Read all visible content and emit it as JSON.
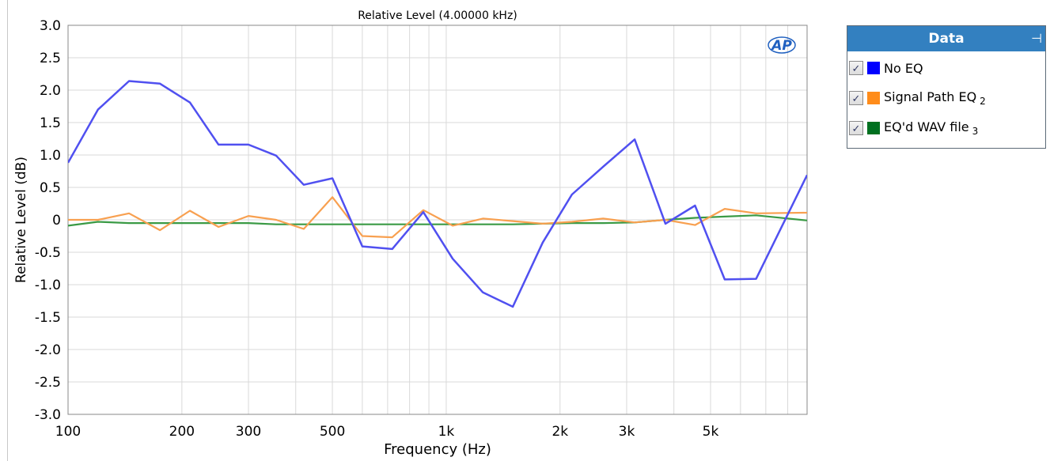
{
  "chart_data": {
    "type": "line",
    "title": "Relative Level (4.00000 kHz)",
    "xlabel": "Frequency (Hz)",
    "ylabel": "Relative Level (dB)",
    "xscale": "log",
    "xlim": [
      100,
      9000
    ],
    "ylim": [
      -3.0,
      3.0
    ],
    "grid": true,
    "x_tick_values": [
      100,
      200,
      300,
      500,
      1000,
      2000,
      3000,
      5000
    ],
    "x_tick_labels": [
      "100",
      "200",
      "300",
      "500",
      "1k",
      "2k",
      "3k",
      "5k"
    ],
    "y_tick_values": [
      3.0,
      2.5,
      2.0,
      1.5,
      1.0,
      0.5,
      0,
      -0.5,
      -1.0,
      -1.5,
      -2.0,
      -2.5,
      -3.0
    ],
    "y_tick_labels": [
      "3.0",
      "2.5",
      "2.0",
      "1.5",
      "1.0",
      "0.5",
      "0",
      "-0.5",
      "-1.0",
      "-1.5",
      "-2.0",
      "-2.5",
      "-3.0"
    ],
    "series": [
      {
        "name": "No EQ",
        "color": "#5050f0",
        "points": [
          [
            100,
            0.88
          ],
          [
            120,
            1.7
          ],
          [
            145,
            2.14
          ],
          [
            175,
            2.1
          ],
          [
            210,
            1.81
          ],
          [
            250,
            1.16
          ],
          [
            300,
            1.16
          ],
          [
            355,
            0.99
          ],
          [
            420,
            0.54
          ],
          [
            500,
            0.64
          ],
          [
            600,
            -0.41
          ],
          [
            720,
            -0.45
          ],
          [
            870,
            0.12
          ],
          [
            1040,
            -0.6
          ],
          [
            1250,
            -1.12
          ],
          [
            1500,
            -1.34
          ],
          [
            1800,
            -0.35
          ],
          [
            2150,
            0.39
          ],
          [
            2600,
            0.82
          ],
          [
            3150,
            1.24
          ],
          [
            3800,
            -0.06
          ],
          [
            4550,
            0.22
          ],
          [
            5450,
            -0.92
          ],
          [
            6600,
            -0.91
          ],
          [
            9000,
            0.69
          ]
        ]
      },
      {
        "name": "Signal Path EQ",
        "suffix": "2",
        "color": "#f8a050",
        "points": [
          [
            100,
            0.0
          ],
          [
            120,
            0.0
          ],
          [
            145,
            0.1
          ],
          [
            175,
            -0.16
          ],
          [
            210,
            0.14
          ],
          [
            250,
            -0.11
          ],
          [
            300,
            0.06
          ],
          [
            355,
            0.0
          ],
          [
            420,
            -0.14
          ],
          [
            500,
            0.35
          ],
          [
            600,
            -0.25
          ],
          [
            720,
            -0.27
          ],
          [
            870,
            0.15
          ],
          [
            1040,
            -0.09
          ],
          [
            1250,
            0.02
          ],
          [
            1500,
            -0.02
          ],
          [
            1800,
            -0.06
          ],
          [
            2150,
            -0.03
          ],
          [
            2600,
            0.02
          ],
          [
            3150,
            -0.04
          ],
          [
            3800,
            0.0
          ],
          [
            4550,
            -0.08
          ],
          [
            5450,
            0.17
          ],
          [
            6600,
            0.1
          ],
          [
            9000,
            0.11
          ]
        ]
      },
      {
        "name": "EQ'd WAV file",
        "suffix": "3",
        "color": "#3a9a45",
        "points": [
          [
            100,
            -0.09
          ],
          [
            120,
            -0.03
          ],
          [
            145,
            -0.05
          ],
          [
            175,
            -0.05
          ],
          [
            210,
            -0.05
          ],
          [
            250,
            -0.05
          ],
          [
            300,
            -0.05
          ],
          [
            355,
            -0.07
          ],
          [
            420,
            -0.07
          ],
          [
            500,
            -0.07
          ],
          [
            600,
            -0.07
          ],
          [
            720,
            -0.07
          ],
          [
            870,
            -0.07
          ],
          [
            1040,
            -0.07
          ],
          [
            1250,
            -0.07
          ],
          [
            1500,
            -0.07
          ],
          [
            1800,
            -0.06
          ],
          [
            2150,
            -0.05
          ],
          [
            2600,
            -0.05
          ],
          [
            3150,
            -0.04
          ],
          [
            3800,
            0.0
          ],
          [
            4550,
            0.03
          ],
          [
            5450,
            0.05
          ],
          [
            6600,
            0.07
          ],
          [
            9000,
            -0.01
          ]
        ]
      }
    ]
  },
  "panel": {
    "title": "Data",
    "pin_icon": "pin-icon",
    "items": [
      {
        "label": "No EQ",
        "suffix": "",
        "color": "#0000ff",
        "checked": true
      },
      {
        "label": "Signal Path EQ",
        "suffix": "2",
        "color": "#ff8c1a",
        "checked": true
      },
      {
        "label": "EQ'd WAV file",
        "suffix": "3",
        "color": "#007020",
        "checked": true
      }
    ]
  },
  "logo": {
    "text": "AP"
  }
}
